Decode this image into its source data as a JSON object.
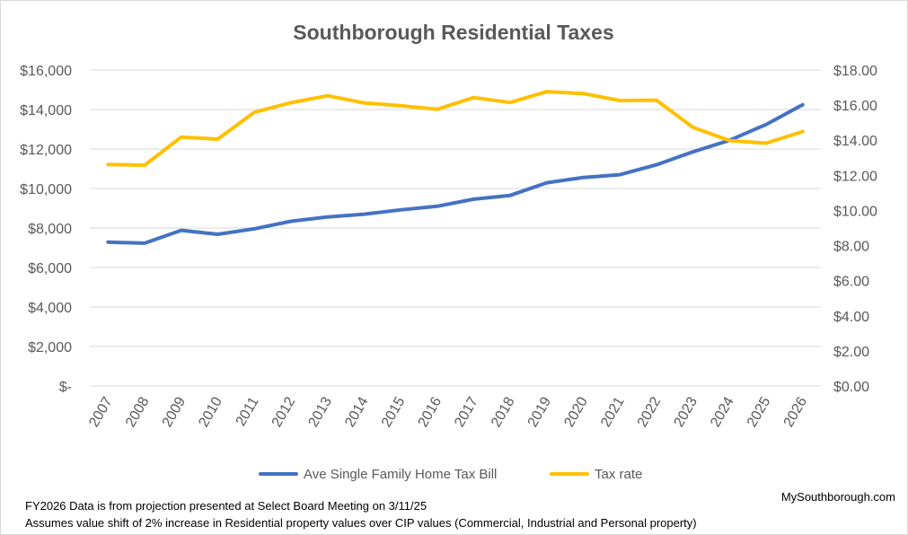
{
  "chart_data": {
    "type": "line",
    "title": "Southborough Residential Taxes",
    "categories": [
      "2007",
      "2008",
      "2009",
      "2010",
      "2011",
      "2012",
      "2013",
      "2014",
      "2015",
      "2016",
      "2017",
      "2018",
      "2019",
      "2020",
      "2021",
      "2022",
      "2023",
      "2024",
      "2025",
      "2026"
    ],
    "series": [
      {
        "name": "Ave Single Family Home Tax Bill",
        "axis": "left",
        "color": "#4472C4",
        "values": [
          7280,
          7230,
          7880,
          7680,
          7960,
          8340,
          8560,
          8700,
          8920,
          9100,
          9460,
          9650,
          10290,
          10560,
          10700,
          11200,
          11860,
          12440,
          13240,
          14240
        ]
      },
      {
        "name": "Tax rate",
        "axis": "right",
        "color": "#FFC000",
        "values": [
          12.62,
          12.58,
          14.18,
          14.06,
          15.59,
          16.14,
          16.53,
          16.13,
          15.97,
          15.76,
          16.43,
          16.15,
          16.77,
          16.66,
          16.26,
          16.28,
          14.73,
          13.98,
          13.83,
          14.49
        ]
      }
    ],
    "y_left": {
      "ylim": [
        0,
        16000
      ],
      "ticks": [
        0,
        2000,
        4000,
        6000,
        8000,
        10000,
        12000,
        14000,
        16000
      ],
      "tick_labels": [
        "$-",
        "$2,000",
        "$4,000",
        "$6,000",
        "$8,000",
        "$10,000",
        "$12,000",
        "$14,000",
        "$16,000"
      ]
    },
    "y_right": {
      "ylim": [
        0,
        18
      ],
      "ticks": [
        0,
        2,
        4,
        6,
        8,
        10,
        12,
        14,
        16,
        18
      ],
      "tick_labels": [
        "$0.00",
        "$2.00",
        "$4.00",
        "$6.00",
        "$8.00",
        "$10.00",
        "$12.00",
        "$14.00",
        "$16.00",
        "$18.00"
      ]
    },
    "grid": true,
    "legend_position": "bottom"
  },
  "notes": [
    "FY2026 Data is from projection presented at Select Board Meeting on 3/11/25",
    "Assumes value shift of 2% increase in Residential property values over CIP values (Commercial, Industrial and Personal property)"
  ],
  "credit": "MySouthborough.com"
}
